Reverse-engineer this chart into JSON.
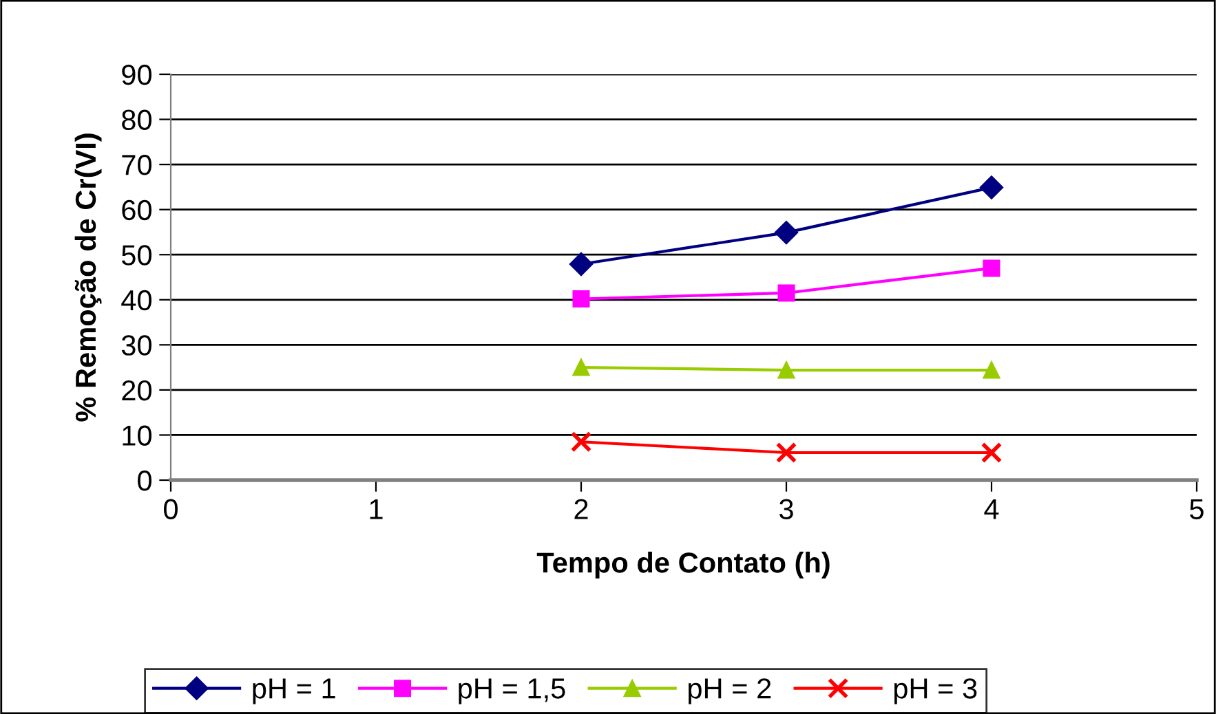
{
  "chart_data": {
    "type": "line",
    "xlabel": "Tempo de Contato (h)",
    "ylabel": "% Remoção de Cr(VI)",
    "x": [
      2,
      3,
      4
    ],
    "series": [
      {
        "name": "pH = 1",
        "color": "#000080",
        "marker": "diamond",
        "values": [
          47.9,
          54.9,
          64.9
        ]
      },
      {
        "name": "pH = 1,5",
        "color": "#ff00ff",
        "marker": "square",
        "values": [
          40.2,
          41.5,
          47.0
        ]
      },
      {
        "name": "pH = 2",
        "color": "#99cc00",
        "marker": "triangle",
        "values": [
          25.0,
          24.4,
          24.4
        ]
      },
      {
        "name": "pH = 3",
        "color": "#ff0000",
        "marker": "cross",
        "values": [
          8.5,
          6.1,
          6.1
        ]
      }
    ],
    "xlim": [
      0,
      5
    ],
    "xticks": [
      0,
      1,
      2,
      3,
      4,
      5
    ],
    "ylim": [
      0,
      90
    ],
    "yticks": [
      0,
      10,
      20,
      30,
      40,
      50,
      60,
      70,
      80,
      90
    ],
    "grid": "y",
    "legend": "bottom",
    "line_style": "solid"
  }
}
